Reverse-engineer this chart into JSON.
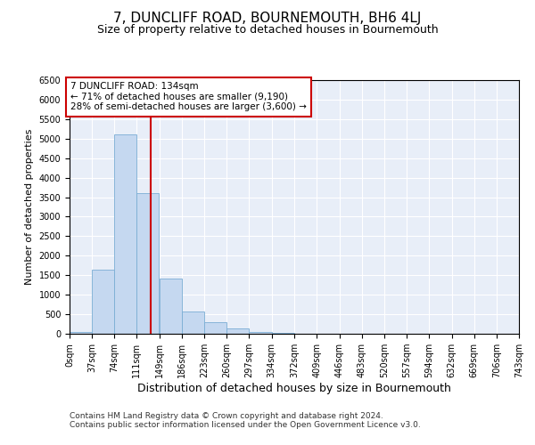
{
  "title": "7, DUNCLIFF ROAD, BOURNEMOUTH, BH6 4LJ",
  "subtitle": "Size of property relative to detached houses in Bournemouth",
  "xlabel": "Distribution of detached houses by size in Bournemouth",
  "ylabel": "Number of detached properties",
  "footnote1": "Contains HM Land Registry data © Crown copyright and database right 2024.",
  "footnote2": "Contains public sector information licensed under the Open Government Licence v3.0.",
  "annotation_title": "7 DUNCLIFF ROAD: 134sqm",
  "annotation_line1": "← 71% of detached houses are smaller (9,190)",
  "annotation_line2": "28% of semi-detached houses are larger (3,600) →",
  "property_size": 134,
  "bin_edges": [
    0,
    37,
    74,
    111,
    149,
    186,
    223,
    260,
    297,
    334,
    372,
    409,
    446,
    483,
    520,
    557,
    594,
    632,
    669,
    706,
    743
  ],
  "bar_heights": [
    50,
    1650,
    5100,
    3600,
    1420,
    580,
    300,
    140,
    50,
    30,
    10,
    5,
    2,
    0,
    0,
    0,
    0,
    0,
    0,
    0
  ],
  "bar_color": "#c5d8f0",
  "bar_edgecolor": "#7aadd4",
  "redline_color": "#cc0000",
  "annotation_box_color": "#cc0000",
  "ylim": [
    0,
    6500
  ],
  "yticks": [
    0,
    500,
    1000,
    1500,
    2000,
    2500,
    3000,
    3500,
    4000,
    4500,
    5000,
    5500,
    6000,
    6500
  ],
  "background_color": "#e8eef8",
  "grid_color": "#ffffff",
  "title_fontsize": 11,
  "subtitle_fontsize": 9,
  "xlabel_fontsize": 9,
  "ylabel_fontsize": 8,
  "tick_fontsize": 7,
  "annotation_fontsize": 7.5,
  "footnote_fontsize": 6.5
}
